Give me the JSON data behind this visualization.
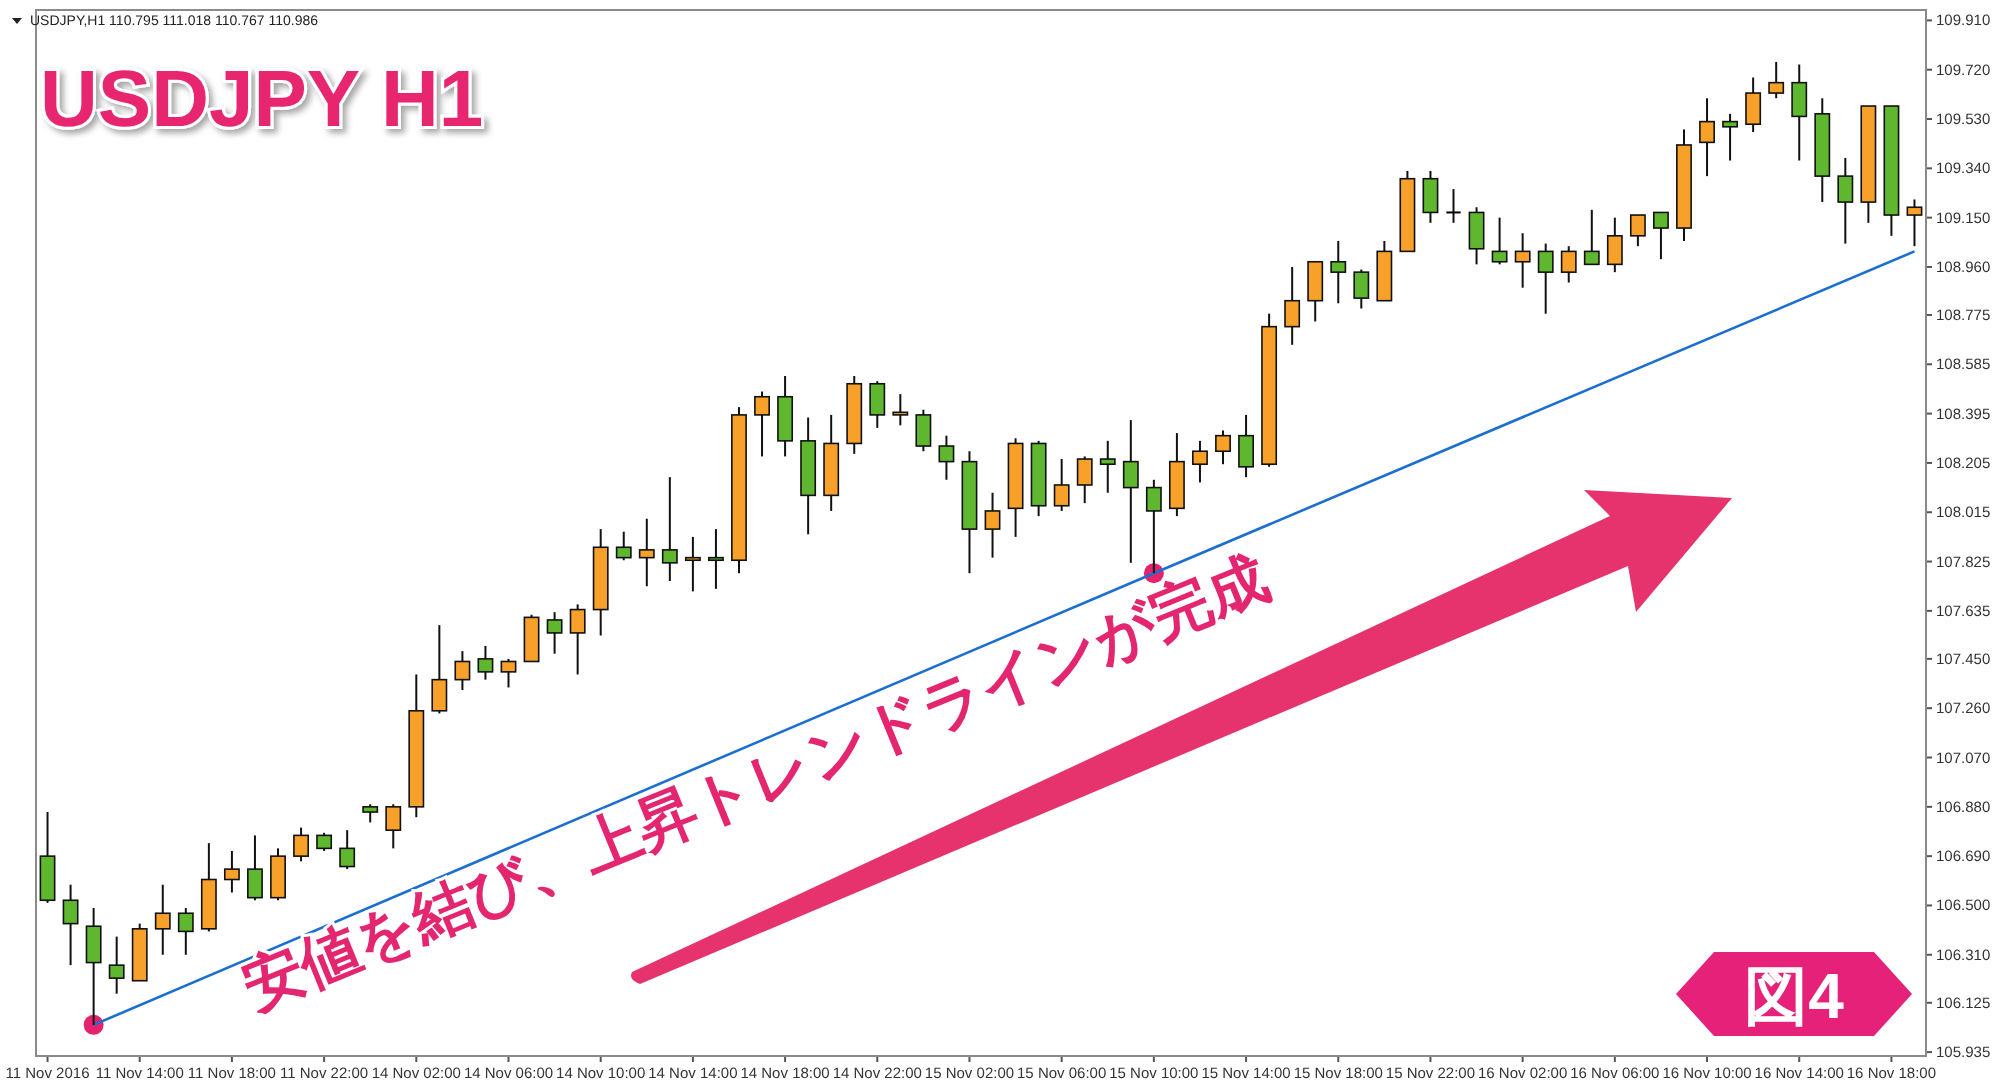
{
  "chart_data": {
    "type": "candlestick",
    "title": "USDJPY H1",
    "categories": [
      "11 Nov 2016",
      null,
      null,
      null,
      "11 Nov 14:00",
      null,
      null,
      null,
      "11 Nov 18:00",
      null,
      null,
      null,
      "11 Nov 22:00",
      null,
      null,
      null,
      "14 Nov 02:00",
      null,
      null,
      null,
      "14 Nov 06:00",
      null,
      null,
      null,
      "14 Nov 10:00",
      null,
      null,
      null,
      "14 Nov 14:00",
      null,
      null,
      null,
      "14 Nov 18:00",
      null,
      null,
      null,
      "14 Nov 22:00",
      null,
      null,
      null,
      "15 Nov 02:00",
      null,
      null,
      null,
      "15 Nov 06:00",
      null,
      null,
      null,
      "15 Nov 10:00",
      null,
      null,
      null,
      "15 Nov 14:00",
      null,
      null,
      null,
      "15 Nov 18:00",
      null,
      null,
      null,
      "15 Nov 22:00",
      null,
      null,
      null,
      "16 Nov 02:00",
      null,
      null,
      null,
      "16 Nov 06:00",
      null,
      null,
      null,
      "16 Nov 10:00",
      null,
      null,
      null,
      "16 Nov 14:00",
      null,
      null,
      null,
      "16 Nov 18:00",
      null
    ],
    "series": [
      {
        "ohlc": [
          [
            106.69,
            106.86,
            106.51,
            106.52
          ],
          [
            106.52,
            106.58,
            106.27,
            106.43
          ],
          [
            106.42,
            106.49,
            106.04,
            106.28
          ],
          [
            106.27,
            106.38,
            106.16,
            106.22
          ],
          [
            106.21,
            106.43,
            106.21,
            106.41
          ],
          [
            106.41,
            106.58,
            106.31,
            106.47
          ],
          [
            106.47,
            106.49,
            106.31,
            106.4
          ],
          [
            106.41,
            106.74,
            106.4,
            106.6
          ],
          [
            106.6,
            106.71,
            106.55,
            106.64
          ],
          [
            106.64,
            106.77,
            106.52,
            106.53
          ],
          [
            106.53,
            106.72,
            106.52,
            106.69
          ],
          [
            106.69,
            106.8,
            106.67,
            106.77
          ],
          [
            106.77,
            106.78,
            106.71,
            106.72
          ],
          [
            106.72,
            106.79,
            106.64,
            106.65
          ],
          [
            106.88,
            106.89,
            106.82,
            106.86
          ],
          [
            106.79,
            106.89,
            106.72,
            106.88
          ],
          [
            106.88,
            107.39,
            106.84,
            107.25
          ],
          [
            107.25,
            107.58,
            107.24,
            107.37
          ],
          [
            107.37,
            107.48,
            107.33,
            107.44
          ],
          [
            107.45,
            107.5,
            107.37,
            107.4
          ],
          [
            107.4,
            107.45,
            107.34,
            107.44
          ],
          [
            107.44,
            107.62,
            107.44,
            107.61
          ],
          [
            107.6,
            107.63,
            107.47,
            107.55
          ],
          [
            107.55,
            107.66,
            107.39,
            107.64
          ],
          [
            107.64,
            107.95,
            107.54,
            107.88
          ],
          [
            107.88,
            107.94,
            107.83,
            107.84
          ],
          [
            107.84,
            107.99,
            107.73,
            107.87
          ],
          [
            107.87,
            108.15,
            107.75,
            107.82
          ],
          [
            107.83,
            107.92,
            107.71,
            107.84
          ],
          [
            107.84,
            107.95,
            107.72,
            107.83
          ],
          [
            107.83,
            108.42,
            107.78,
            108.39
          ],
          [
            108.39,
            108.48,
            108.23,
            108.46
          ],
          [
            108.46,
            108.54,
            108.23,
            108.29
          ],
          [
            108.29,
            108.38,
            107.93,
            108.08
          ],
          [
            108.08,
            108.39,
            108.02,
            108.28
          ],
          [
            108.28,
            108.54,
            108.24,
            108.51
          ],
          [
            108.51,
            108.52,
            108.34,
            108.39
          ],
          [
            108.39,
            108.47,
            108.35,
            108.4
          ],
          [
            108.39,
            108.41,
            108.25,
            108.27
          ],
          [
            108.27,
            108.31,
            108.14,
            108.21
          ],
          [
            108.21,
            108.25,
            107.78,
            107.95
          ],
          [
            107.95,
            108.09,
            107.84,
            108.02
          ],
          [
            108.03,
            108.3,
            107.92,
            108.28
          ],
          [
            108.28,
            108.29,
            108.0,
            108.04
          ],
          [
            108.04,
            108.22,
            108.02,
            108.12
          ],
          [
            108.12,
            108.23,
            108.05,
            108.22
          ],
          [
            108.22,
            108.29,
            108.09,
            108.2
          ],
          [
            108.21,
            108.37,
            107.82,
            108.11
          ],
          [
            108.11,
            108.14,
            107.78,
            108.02
          ],
          [
            108.03,
            108.32,
            108.0,
            108.21
          ],
          [
            108.2,
            108.29,
            108.13,
            108.25
          ],
          [
            108.25,
            108.33,
            108.2,
            108.31
          ],
          [
            108.31,
            108.39,
            108.15,
            108.19
          ],
          [
            108.2,
            108.78,
            108.19,
            108.73
          ],
          [
            108.73,
            108.96,
            108.66,
            108.83
          ],
          [
            108.83,
            108.98,
            108.75,
            108.98
          ],
          [
            108.98,
            109.06,
            108.82,
            108.94
          ],
          [
            108.94,
            108.95,
            108.8,
            108.84
          ],
          [
            108.83,
            109.06,
            108.83,
            109.02
          ],
          [
            109.02,
            109.33,
            109.02,
            109.3
          ],
          [
            109.3,
            109.33,
            109.13,
            109.17
          ],
          [
            109.17,
            109.26,
            109.13,
            109.17
          ],
          [
            109.17,
            109.19,
            108.97,
            109.03
          ],
          [
            109.02,
            109.15,
            108.97,
            108.98
          ],
          [
            108.98,
            109.09,
            108.88,
            109.02
          ],
          [
            109.02,
            109.05,
            108.78,
            108.94
          ],
          [
            108.94,
            109.04,
            108.9,
            109.02
          ],
          [
            109.02,
            109.18,
            108.97,
            108.97
          ],
          [
            108.97,
            109.15,
            108.94,
            109.08
          ],
          [
            109.08,
            109.16,
            109.04,
            109.16
          ],
          [
            109.17,
            109.17,
            108.99,
            109.11
          ],
          [
            109.11,
            109.49,
            109.06,
            109.43
          ],
          [
            109.44,
            109.61,
            109.31,
            109.52
          ],
          [
            109.52,
            109.55,
            109.37,
            109.5
          ],
          [
            109.51,
            109.69,
            109.48,
            109.63
          ],
          [
            109.63,
            109.75,
            109.61,
            109.67
          ],
          [
            109.67,
            109.74,
            109.37,
            109.54
          ],
          [
            109.55,
            109.61,
            109.21,
            109.31
          ],
          [
            109.31,
            109.38,
            109.05,
            109.21
          ],
          [
            109.21,
            109.58,
            109.13,
            109.58
          ],
          [
            109.58,
            109.58,
            109.08,
            109.16
          ],
          [
            109.16,
            109.22,
            109.04,
            109.19
          ]
        ],
        "colors": [
          "#5fb62f",
          "#5fb62f",
          "#5fb62f",
          "#5fb62f",
          "#f7a12b",
          "#f7a12b",
          "#5fb62f",
          "#f7a12b",
          "#f7a12b",
          "#5fb62f",
          "#f7a12b",
          "#f7a12b",
          "#5fb62f",
          "#5fb62f",
          "#5fb62f",
          "#f7a12b",
          "#f7a12b",
          "#f7a12b",
          "#f7a12b",
          "#5fb62f",
          "#f7a12b",
          "#f7a12b",
          "#5fb62f",
          "#f7a12b",
          "#f7a12b",
          "#5fb62f",
          "#f7a12b",
          "#5fb62f",
          "#f7a12b",
          "#5fb62f",
          "#f7a12b",
          "#f7a12b",
          "#5fb62f",
          "#5fb62f",
          "#f7a12b",
          "#f7a12b",
          "#5fb62f",
          "#f7a12b",
          "#5fb62f",
          "#5fb62f",
          "#5fb62f",
          "#f7a12b",
          "#f7a12b",
          "#5fb62f",
          "#f7a12b",
          "#f7a12b",
          "#5fb62f",
          "#5fb62f",
          "#5fb62f",
          "#f7a12b",
          "#f7a12b",
          "#f7a12b",
          "#5fb62f",
          "#f7a12b",
          "#f7a12b",
          "#f7a12b",
          "#5fb62f",
          "#5fb62f",
          "#f7a12b",
          "#f7a12b",
          "#5fb62f",
          "#000000",
          "#5fb62f",
          "#5fb62f",
          "#f7a12b",
          "#5fb62f",
          "#f7a12b",
          "#5fb62f",
          "#f7a12b",
          "#f7a12b",
          "#5fb62f",
          "#f7a12b",
          "#f7a12b",
          "#5fb62f",
          "#f7a12b",
          "#f7a12b",
          "#5fb62f",
          "#5fb62f",
          "#5fb62f",
          "#f7a12b",
          "#5fb62f",
          "#f7a12b"
        ]
      },
      {
        "type": "line",
        "values": [
          null,
          null,
          106.04,
          null,
          null,
          null,
          null,
          null,
          null,
          null,
          null,
          null,
          null,
          null,
          null,
          null,
          null,
          null,
          null,
          null,
          null,
          null,
          null,
          null,
          null,
          null,
          null,
          null,
          null,
          null,
          null,
          null,
          null,
          null,
          null,
          null,
          null,
          null,
          null,
          null,
          null,
          null,
          null,
          null,
          null,
          null,
          null,
          null,
          107.78,
          null,
          null,
          null,
          null,
          null,
          null,
          null,
          null,
          null,
          null,
          null,
          null,
          null,
          null,
          null,
          null,
          null,
          null,
          null,
          null,
          null,
          null,
          null,
          null,
          null,
          null,
          null,
          null,
          null,
          null,
          null,
          null,
          109.02
        ],
        "color": "#1c6fd1"
      },
      {
        "type": "scatter",
        "values": [
          null,
          null,
          106.04,
          null,
          null,
          null,
          null,
          null,
          null,
          null,
          null,
          null,
          null,
          null,
          null,
          null,
          null,
          null,
          null,
          null,
          null,
          null,
          null,
          null,
          null,
          null,
          null,
          null,
          null,
          null,
          null,
          null,
          null,
          null,
          null,
          null,
          null,
          null,
          null,
          null,
          null,
          null,
          null,
          null,
          null,
          null,
          null,
          null,
          107.78,
          null,
          null,
          null,
          null,
          null,
          null,
          null,
          null,
          null,
          null,
          null,
          null,
          null,
          null,
          null,
          null,
          null,
          null,
          null,
          null,
          null,
          null,
          null,
          null,
          null,
          null,
          null,
          null,
          null,
          null,
          null,
          null,
          null
        ],
        "color": "#e5226b",
        "marker": "circle"
      }
    ],
    "ylim": [
      105.92,
      109.95
    ],
    "yticks": [
      105.935,
      106.125,
      {
        "value": 106.31,
        "label": "106.310"
      },
      {
        "value": 106.5,
        "label": "106.500"
      },
      {
        "value": 106.69,
        "label": "106.690"
      },
      {
        "value": 106.88,
        "label": "106.880"
      },
      {
        "value": 107.07,
        "label": "107.070"
      },
      {
        "value": 107.26,
        "label": "107.260"
      },
      {
        "value": 107.45,
        "label": "107.450"
      },
      107.635,
      107.825,
      108.015,
      108.205,
      108.395,
      108.585,
      108.775,
      {
        "value": 108.96,
        "label": "108.960"
      },
      {
        "value": 109.15,
        "label": "109.150"
      },
      {
        "value": 109.34,
        "label": "109.340"
      },
      {
        "value": 109.53,
        "label": "109.530"
      },
      {
        "value": 109.72,
        "label": "109.720"
      },
      {
        "value": 109.91,
        "label": "109.910"
      }
    ],
    "annotations": [
      "USDJPY,H1 110.795 111.018 110.767 110.986",
      "安値を結び、上昇トレンドラインが完成",
      "図4"
    ]
  }
}
